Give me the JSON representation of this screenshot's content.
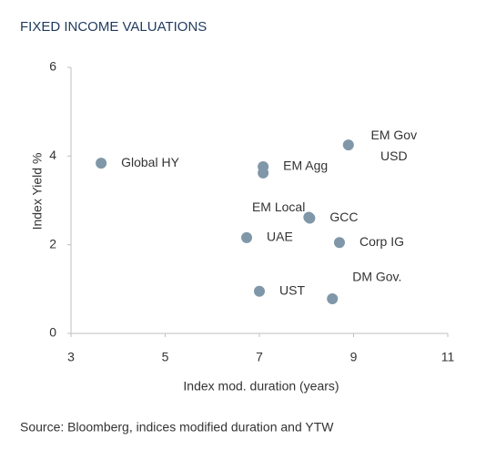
{
  "chart_data": {
    "type": "scatter",
    "title": "FIXED INCOME VALUATIONS",
    "x_label": "Index mod. duration (years)",
    "y_label": "Index Yield %",
    "source": "Source: Bloomberg, indices modified duration and YTW",
    "color": "#7f97a8",
    "xlim": [
      3,
      11
    ],
    "xticks": [
      3,
      5,
      7,
      9,
      11
    ],
    "ylim": [
      0,
      6
    ],
    "yticks": [
      0,
      2,
      4,
      6
    ],
    "labels": [
      "Global HY",
      "EM Agg",
      null,
      [
        "EM Gov",
        "USD"
      ],
      "EM Local",
      "GCC",
      "Corp IG",
      "UAE",
      "UST",
      "DM Gov."
    ],
    "x": [
      3.64,
      7.08,
      7.08,
      8.89,
      8.05,
      8.07,
      8.7,
      6.73,
      7.0,
      8.55
    ],
    "values": [
      3.84,
      3.76,
      3.62,
      4.25,
      2.62,
      2.6,
      2.05,
      2.16,
      0.95,
      0.78
    ]
  }
}
